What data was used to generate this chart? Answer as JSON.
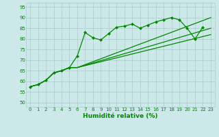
{
  "xlabel": "Humidité relative (%)",
  "xlim": [
    -0.5,
    23.5
  ],
  "ylim": [
    48,
    97
  ],
  "yticks": [
    50,
    55,
    60,
    65,
    70,
    75,
    80,
    85,
    90,
    95
  ],
  "xticks": [
    0,
    1,
    2,
    3,
    4,
    5,
    6,
    7,
    8,
    9,
    10,
    11,
    12,
    13,
    14,
    15,
    16,
    17,
    18,
    19,
    20,
    21,
    22,
    23
  ],
  "bg_color": "#cce8e8",
  "grid_color": "#aacccc",
  "line_color": "#008800",
  "series1_x": [
    0,
    1,
    2,
    3,
    4,
    5,
    6,
    7,
    8,
    9,
    10,
    11,
    12,
    13,
    14,
    15,
    16,
    17,
    18,
    19,
    20,
    21,
    22
  ],
  "series1_y": [
    57.5,
    58.5,
    60.5,
    64,
    65,
    66.5,
    72,
    83,
    80.5,
    79.5,
    82.5,
    85.5,
    86,
    87,
    85,
    86.5,
    88,
    89,
    90,
    89,
    85,
    80,
    85.5
  ],
  "series2_x": [
    0,
    1,
    2,
    3,
    4,
    5,
    6,
    23
  ],
  "series2_y": [
    57.5,
    58.5,
    60.5,
    64,
    65,
    66.5,
    66.5,
    90
  ],
  "series3_x": [
    0,
    1,
    2,
    3,
    4,
    5,
    6,
    23
  ],
  "series3_y": [
    57.5,
    58.5,
    60.5,
    64,
    65,
    66.5,
    66.5,
    85
  ],
  "series4_x": [
    0,
    1,
    2,
    3,
    4,
    5,
    6,
    23
  ],
  "series4_y": [
    57.5,
    58.5,
    60.5,
    64,
    65,
    66.5,
    66.5,
    82
  ]
}
